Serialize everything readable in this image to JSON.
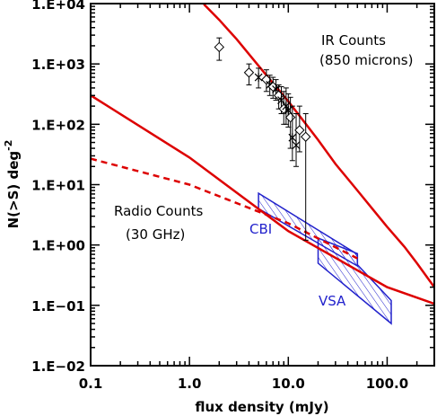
{
  "chart_data": {
    "type": "line",
    "x_scale": "log",
    "y_scale": "log",
    "xlim": [
      0.1,
      300
    ],
    "ylim": [
      0.01,
      10000
    ],
    "xlabel": "flux density (mJy)",
    "ylabel": "N(>S) deg",
    "ylabel_sup": "-2",
    "x_ticks": [
      {
        "value": 0.1,
        "label": "0.1"
      },
      {
        "value": 1,
        "label": "1.0"
      },
      {
        "value": 10,
        "label": "10.0"
      },
      {
        "value": 100,
        "label": "100.0"
      }
    ],
    "y_ticks": [
      {
        "value": 10000,
        "label": "1.E+04"
      },
      {
        "value": 1000,
        "label": "1.E+03"
      },
      {
        "value": 100,
        "label": "1.E+02"
      },
      {
        "value": 10,
        "label": "1.E+01"
      },
      {
        "value": 1,
        "label": "1.E+00"
      },
      {
        "value": 0.1,
        "label": "1.E−01"
      },
      {
        "value": 0.01,
        "label": "1.E−02"
      }
    ],
    "annotations": {
      "ir_title": "IR Counts",
      "ir_sub": "(850 microns)",
      "radio_title": "Radio Counts",
      "radio_sub": "(30 GHz)",
      "cbi": "CBI",
      "vsa": "VSA"
    },
    "series": [
      {
        "key": "ir_model",
        "style": "solid",
        "color": "#dd0000",
        "points": [
          [
            1.4,
            9772
          ],
          [
            2,
            5370
          ],
          [
            3,
            2570
          ],
          [
            5,
            933
          ],
          [
            7,
            479
          ],
          [
            10,
            240
          ],
          [
            15,
            102
          ],
          [
            20,
            55
          ],
          [
            30,
            22
          ],
          [
            50,
            8
          ],
          [
            70,
            4.07
          ],
          [
            100,
            2.0
          ],
          [
            150,
            0.93
          ],
          [
            200,
            0.5
          ],
          [
            300,
            0.2
          ],
          [
            350,
            0.13
          ],
          [
            400,
            0.09
          ]
        ]
      },
      {
        "key": "radio_model_solid",
        "color": "#dd0000",
        "style": "solid",
        "points": [
          [
            0.1,
            302
          ],
          [
            1,
            28.2
          ],
          [
            10,
            1.7
          ],
          [
            100,
            0.2
          ],
          [
            400,
            0.09
          ]
        ]
      },
      {
        "key": "radio_model_dashed",
        "color": "#dd0000",
        "style": "dashed",
        "points": [
          [
            0.1,
            26.9
          ],
          [
            1,
            10.0
          ],
          [
            10,
            2.29
          ],
          [
            50,
            0.6
          ]
        ]
      }
    ],
    "ir_data": [
      {
        "x": 2.0,
        "y": 1900,
        "lo": 1150,
        "hi": 2700,
        "marker": "diamond"
      },
      {
        "x": 4.0,
        "y": 720,
        "lo": 450,
        "hi": 1000,
        "marker": "diamond"
      },
      {
        "x": 5.0,
        "y": 600,
        "lo": 400,
        "hi": 850,
        "marker": "star"
      },
      {
        "x": 6.0,
        "y": 550,
        "lo": 350,
        "hi": 800,
        "marker": "diamond"
      },
      {
        "x": 6.5,
        "y": 450,
        "lo": 300,
        "hi": 650,
        "marker": "star"
      },
      {
        "x": 7.0,
        "y": 420,
        "lo": 270,
        "hi": 600,
        "marker": "diamond"
      },
      {
        "x": 7.5,
        "y": 380,
        "lo": 250,
        "hi": 550,
        "marker": "star"
      },
      {
        "x": 8.0,
        "y": 300,
        "lo": 180,
        "hi": 450,
        "marker": "diamond"
      },
      {
        "x": 8.5,
        "y": 250,
        "lo": 150,
        "hi": 420,
        "marker": "star"
      },
      {
        "x": 9.0,
        "y": 180,
        "lo": 100,
        "hi": 350,
        "marker": "diamond"
      },
      {
        "x": 9.5,
        "y": 200,
        "lo": 100,
        "hi": 400,
        "marker": "star"
      },
      {
        "x": 10.0,
        "y": 170,
        "lo": 90,
        "hi": 320,
        "marker": "star"
      },
      {
        "x": 10.5,
        "y": 130,
        "lo": 40,
        "hi": 280,
        "marker": "diamond"
      },
      {
        "x": 11.0,
        "y": 60,
        "lo": 25,
        "hi": 200,
        "marker": "star"
      },
      {
        "x": 12.0,
        "y": 45,
        "lo": 20,
        "hi": 150,
        "marker": "star"
      },
      {
        "x": 13.0,
        "y": 80,
        "lo": 35,
        "hi": 200,
        "marker": "diamond"
      },
      {
        "x": 15.0,
        "y": 62,
        "lo": 1.2,
        "hi": 150,
        "marker": "diamond"
      }
    ],
    "bands": [
      {
        "key": "cbi_band",
        "color": "#2222cc",
        "polygon": [
          [
            5,
            7.2
          ],
          [
            5,
            4.0
          ],
          [
            50,
            0.45
          ],
          [
            50,
            0.7
          ]
        ]
      },
      {
        "key": "vsa_band",
        "color": "#2222cc",
        "polygon": [
          [
            20,
            1.3
          ],
          [
            20,
            0.5
          ],
          [
            110,
            0.05
          ],
          [
            110,
            0.12
          ],
          [
            50,
            0.47
          ],
          [
            50,
            0.72
          ]
        ]
      }
    ]
  }
}
